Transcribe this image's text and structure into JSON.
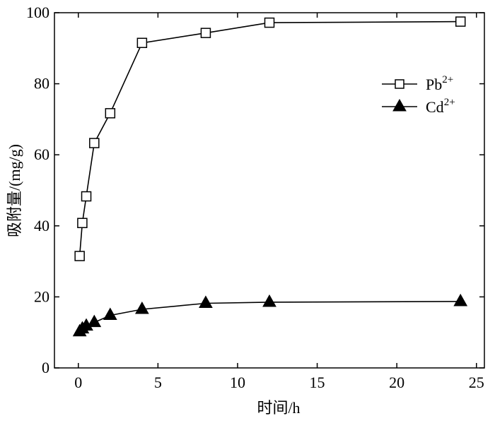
{
  "chart_data": {
    "type": "line",
    "xlabel": "时间/h",
    "ylabel": "吸附量/(mg/g)",
    "xlim": [
      -1.5,
      25.5
    ],
    "ylim": [
      0,
      100
    ],
    "xticks": [
      0,
      5,
      10,
      15,
      20,
      25
    ],
    "yticks": [
      0,
      20,
      40,
      60,
      80,
      100
    ],
    "grid": false,
    "legend_position": "top-right",
    "series": [
      {
        "name": "Pb",
        "name_sup": "2+",
        "marker": "open-square",
        "color": "#000000",
        "x": [
          0.083,
          0.25,
          0.5,
          1,
          2,
          4,
          8,
          12,
          24
        ],
        "y": [
          31.5,
          40.8,
          48.3,
          63.3,
          71.7,
          91.5,
          94.3,
          97.2,
          97.5
        ]
      },
      {
        "name": "Cd",
        "name_sup": "2+",
        "marker": "filled-triangle",
        "color": "#000000",
        "x": [
          0.083,
          0.25,
          0.5,
          1,
          2,
          4,
          8,
          12,
          24
        ],
        "y": [
          10.2,
          11.0,
          11.8,
          12.8,
          14.8,
          16.5,
          18.2,
          18.5,
          18.7
        ]
      }
    ]
  }
}
